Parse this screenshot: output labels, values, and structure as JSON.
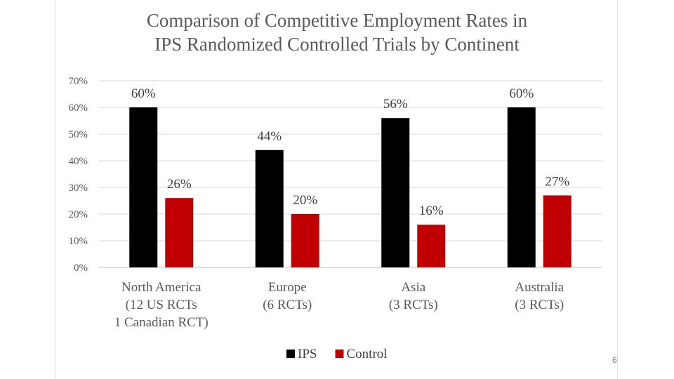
{
  "chart_data": {
    "type": "bar",
    "title": [
      "Comparison of Competitive Employment Rates in",
      "IPS Randomized Controlled Trials by Continent"
    ],
    "categories": [
      [
        "North America",
        "(12 US RCTs",
        "1 Canadian RCT)"
      ],
      [
        "Europe",
        "(6 RCTs)"
      ],
      [
        "Asia",
        "(3 RCTs)"
      ],
      [
        "Australia",
        "(3 RCTs)"
      ]
    ],
    "series": [
      {
        "name": "IPS",
        "color": "#000000",
        "values": [
          60,
          44,
          56,
          60
        ],
        "labels": [
          "60%",
          "44%",
          "56%",
          "60%"
        ]
      },
      {
        "name": "Control",
        "color": "#c00000",
        "values": [
          26,
          20,
          16,
          27
        ],
        "labels": [
          "26%",
          "20%",
          "16%",
          "27%"
        ]
      }
    ],
    "ylim": [
      0,
      70
    ],
    "yticks": [
      "0%",
      "10%",
      "20%",
      "30%",
      "40%",
      "50%",
      "60%",
      "70%"
    ],
    "grid": true,
    "legend": "bottom"
  },
  "page_number": "6"
}
